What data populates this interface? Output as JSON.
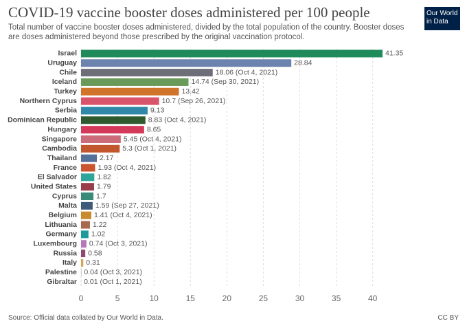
{
  "chart_data": {
    "type": "bar",
    "orientation": "horizontal",
    "title": "COVID-19 vaccine booster doses administered per 100 people",
    "subtitle": "Total number of vaccine booster doses administered, divided by the total population of the country. Booster doses are doses administered beyond those prescribed by the original vaccination protocol.",
    "logo": "Our World in Data",
    "source": "Source: Official data collated by Our World in Data.",
    "license": "CC BY",
    "categories": [
      "Israel",
      "Uruguay",
      "Chile",
      "Iceland",
      "Turkey",
      "Northern Cyprus",
      "Serbia",
      "Dominican Republic",
      "Hungary",
      "Singapore",
      "Cambodia",
      "Thailand",
      "France",
      "El Salvador",
      "United States",
      "Cyprus",
      "Malta",
      "Belgium",
      "Lithuania",
      "Germany",
      "Luxembourg",
      "Russia",
      "Italy",
      "Palestine",
      "Gibraltar"
    ],
    "values": [
      41.35,
      28.84,
      18.06,
      14.74,
      13.42,
      10.7,
      9.13,
      8.83,
      8.65,
      5.45,
      5.3,
      2.17,
      1.93,
      1.82,
      1.79,
      1.7,
      1.59,
      1.41,
      1.22,
      1.02,
      0.74,
      0.58,
      0.31,
      0.04,
      0.01
    ],
    "value_labels": [
      "41.35",
      "28.84",
      "18.06 (Oct 4, 2021)",
      "14.74 (Sep 30, 2021)",
      "13.42",
      "10.7 (Sep 26, 2021)",
      "9.13",
      "8.83 (Oct 4, 2021)",
      "8.65",
      "5.45 (Oct 4, 2021)",
      "5.3 (Oct 1, 2021)",
      "2.17",
      "1.93 (Oct 4, 2021)",
      "1.82",
      "1.79",
      "1.7",
      "1.59 (Sep 27, 2021)",
      "1.41 (Oct 4, 2021)",
      "1.22",
      "1.02",
      "0.74 (Oct 3, 2021)",
      "0.58",
      "0.31",
      "0.04 (Oct 3, 2021)",
      "0.01 (Oct 1, 2021)"
    ],
    "colors": [
      "#1f8a5a",
      "#6c83ad",
      "#6e6e78",
      "#6a9a5a",
      "#d0732b",
      "#d9536a",
      "#2f88a8",
      "#2f5a2f",
      "#d4395a",
      "#cc6b7a",
      "#c2562d",
      "#55709a",
      "#c9542e",
      "#2fa59a",
      "#9a3d4a",
      "#3a8a7a",
      "#3e5a7a",
      "#c98a2e",
      "#a86a4e",
      "#1e9a9a",
      "#b47ab8",
      "#8e4a6e",
      "#d4a85a",
      "#6a9a5a",
      "#888888"
    ],
    "xlim": [
      0,
      41.35
    ],
    "xticks": [
      0,
      5,
      10,
      15,
      20,
      25,
      30,
      35,
      40
    ],
    "grid": true
  }
}
